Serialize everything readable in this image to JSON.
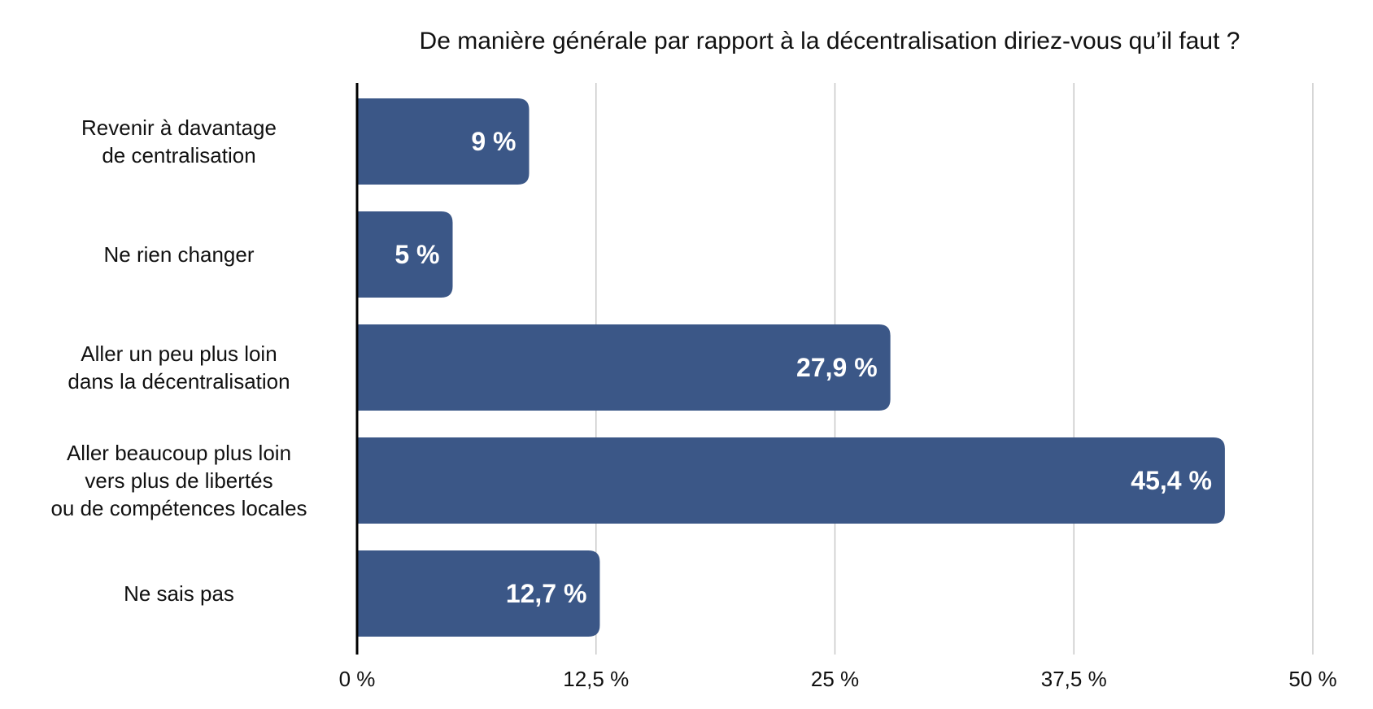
{
  "chart_data": {
    "type": "bar",
    "orientation": "horizontal",
    "title": "De manière générale par rapport à la décentralisation diriez-vous qu’il faut ?",
    "categories": [
      [
        "Revenir à davantage",
        "de centralisation"
      ],
      [
        "Ne rien changer"
      ],
      [
        "Aller un peu plus loin",
        "dans la décentralisation"
      ],
      [
        "Aller beaucoup plus loin",
        "vers plus de libertés",
        "ou de compétences locales"
      ],
      [
        "Ne sais pas"
      ]
    ],
    "values": [
      9,
      5,
      27.9,
      45.4,
      12.7
    ],
    "data_labels": [
      "9 %",
      "5 %",
      "27,9 %",
      "45,4 %",
      "12,7 %"
    ],
    "xlim": [
      0,
      50
    ],
    "ticks": [
      0,
      12.5,
      25,
      37.5,
      50
    ],
    "tick_labels": [
      "0 %",
      "12,5 %",
      "25 %",
      "37,5 %",
      "50 %"
    ],
    "grid": true,
    "bar_color": "#3b5787",
    "grid_color": "#c8c8c8",
    "axis_color": "#000000"
  }
}
